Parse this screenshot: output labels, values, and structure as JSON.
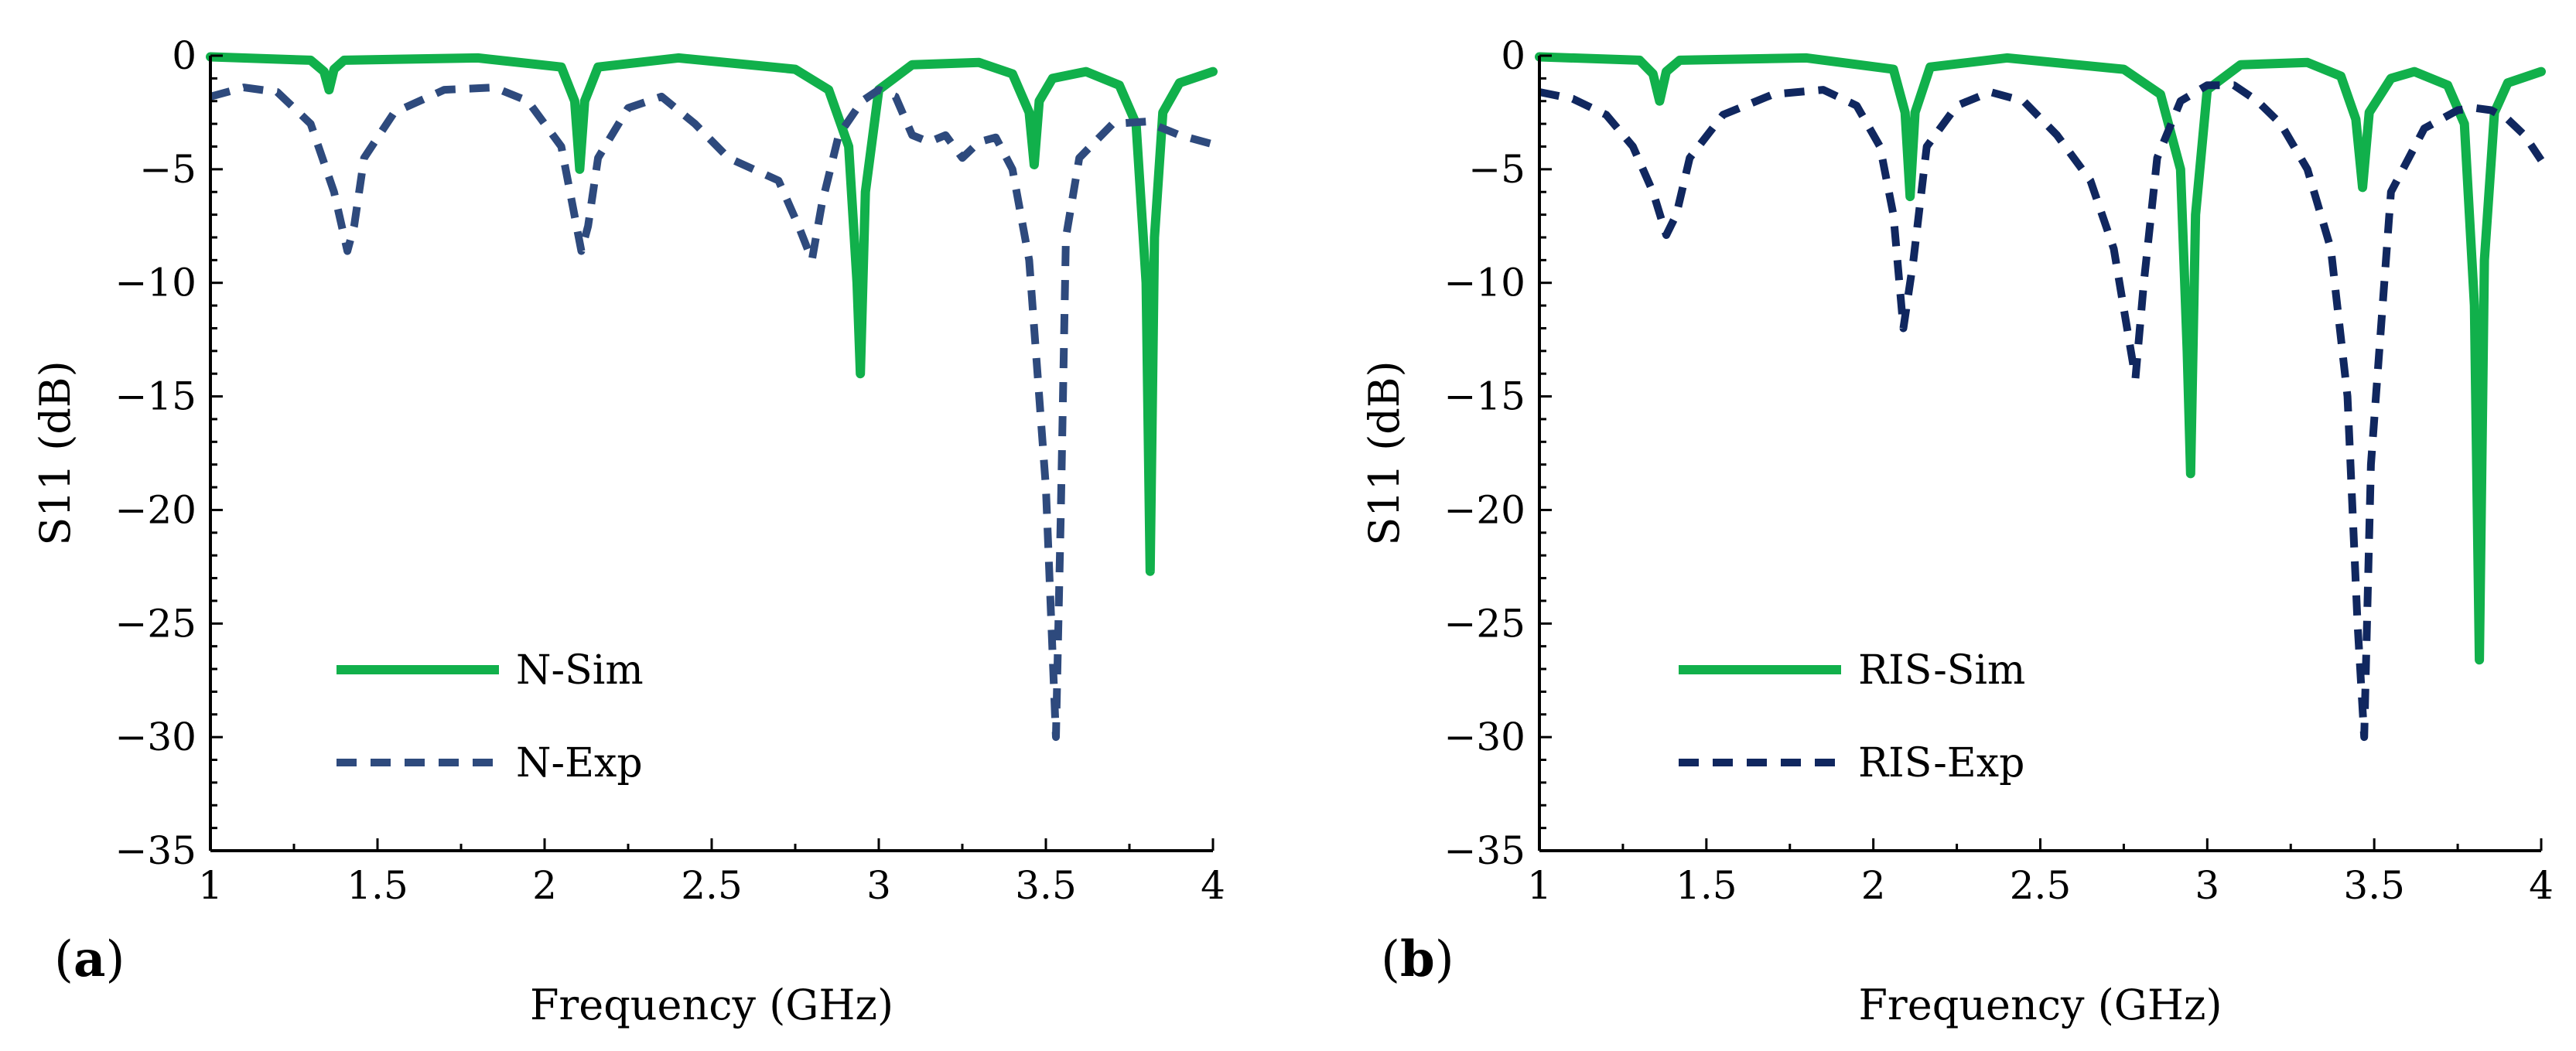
{
  "colors": {
    "sim": "#11b04b",
    "exp_a": "#2e4a7d",
    "exp_b": "#10275f"
  },
  "chart_data": [
    {
      "type": "line",
      "panel_label": "a",
      "title": "",
      "xlabel": "Frequency (GHz)",
      "ylabel": "S11 (dB)",
      "xlim": [
        1,
        4
      ],
      "ylim": [
        -35,
        0
      ],
      "xticks": [
        "1",
        "1.5",
        "2",
        "2.5",
        "3",
        "3.5",
        "4"
      ],
      "yticks": [
        "0",
        "−5",
        "−10",
        "−15",
        "−20",
        "−25",
        "−30",
        "−35"
      ],
      "legend_position": "bottom-left",
      "series": [
        {
          "name": "N-Sim",
          "style": "solid",
          "color": "#11b04b",
          "x": [
            1.0,
            1.3,
            1.34,
            1.355,
            1.37,
            1.4,
            1.8,
            2.05,
            2.09,
            2.105,
            2.12,
            2.16,
            2.4,
            2.75,
            2.85,
            2.91,
            2.935,
            2.945,
            2.96,
            3.0,
            3.1,
            3.3,
            3.4,
            3.45,
            3.465,
            3.48,
            3.52,
            3.62,
            3.72,
            3.77,
            3.8,
            3.812,
            3.825,
            3.85,
            3.9,
            4.0
          ],
          "y": [
            -0.05,
            -0.2,
            -0.7,
            -1.5,
            -0.6,
            -0.2,
            -0.1,
            -0.5,
            -2.0,
            -5.0,
            -2.0,
            -0.5,
            -0.1,
            -0.6,
            -1.5,
            -4.0,
            -10.0,
            -14.0,
            -6.0,
            -1.5,
            -0.4,
            -0.3,
            -0.8,
            -2.5,
            -4.8,
            -2.0,
            -1.0,
            -0.7,
            -1.3,
            -3.0,
            -10.0,
            -22.7,
            -8.0,
            -2.5,
            -1.2,
            -0.7
          ]
        },
        {
          "name": "N-Exp",
          "style": "dashed",
          "color": "#2e4a7d",
          "x": [
            1.0,
            1.1,
            1.2,
            1.3,
            1.37,
            1.41,
            1.43,
            1.46,
            1.55,
            1.7,
            1.85,
            1.95,
            2.05,
            2.11,
            2.13,
            2.16,
            2.25,
            2.35,
            2.45,
            2.55,
            2.7,
            2.76,
            2.8,
            2.83,
            2.88,
            2.95,
            3.0,
            3.05,
            3.1,
            3.15,
            3.2,
            3.25,
            3.3,
            3.35,
            3.4,
            3.45,
            3.5,
            3.53,
            3.545,
            3.56,
            3.6,
            3.7,
            3.8,
            3.9,
            4.0
          ],
          "y": [
            -1.8,
            -1.4,
            -1.6,
            -3.0,
            -6.0,
            -8.6,
            -7.5,
            -4.5,
            -2.5,
            -1.5,
            -1.4,
            -2.0,
            -4.0,
            -8.6,
            -7.5,
            -4.5,
            -2.3,
            -1.8,
            -3.0,
            -4.5,
            -5.5,
            -7.5,
            -9.0,
            -6.5,
            -3.5,
            -2.0,
            -1.5,
            -1.8,
            -3.5,
            -3.8,
            -3.5,
            -4.5,
            -3.8,
            -3.6,
            -5.0,
            -9.0,
            -19.0,
            -30.0,
            -20.0,
            -8.0,
            -4.5,
            -3.0,
            -2.9,
            -3.5,
            -3.9
          ]
        }
      ],
      "legend_entries": [
        "N-Sim",
        "N-Exp"
      ]
    },
    {
      "type": "line",
      "panel_label": "b",
      "title": "",
      "xlabel": "Frequency (GHz)",
      "ylabel": "S11 (dB)",
      "xlim": [
        1,
        4
      ],
      "ylim": [
        -35,
        0
      ],
      "xticks": [
        "1",
        "1.5",
        "2",
        "2.5",
        "3",
        "3.5",
        "4"
      ],
      "yticks": [
        "0",
        "−5",
        "−10",
        "−15",
        "−20",
        "−25",
        "−30",
        "−35"
      ],
      "legend_position": "bottom-left",
      "series": [
        {
          "name": "RIS-Sim",
          "style": "solid",
          "color": "#11b04b",
          "x": [
            1.0,
            1.3,
            1.34,
            1.36,
            1.38,
            1.42,
            1.8,
            2.06,
            2.095,
            2.11,
            2.125,
            2.17,
            2.4,
            2.75,
            2.86,
            2.92,
            2.94,
            2.95,
            2.965,
            3.0,
            3.1,
            3.3,
            3.4,
            3.445,
            3.465,
            3.485,
            3.55,
            3.62,
            3.72,
            3.77,
            3.8,
            3.815,
            3.83,
            3.86,
            3.9,
            4.0
          ],
          "y": [
            -0.05,
            -0.2,
            -0.8,
            -2.0,
            -0.7,
            -0.2,
            -0.1,
            -0.6,
            -2.5,
            -6.2,
            -2.5,
            -0.5,
            -0.1,
            -0.6,
            -1.7,
            -5.0,
            -13.0,
            -18.4,
            -7.0,
            -1.5,
            -0.4,
            -0.3,
            -0.9,
            -2.8,
            -5.8,
            -2.5,
            -1.0,
            -0.7,
            -1.3,
            -3.0,
            -11.0,
            -26.6,
            -9.0,
            -2.5,
            -1.2,
            -0.7
          ]
        },
        {
          "name": "RIS-Exp",
          "style": "dashed",
          "color": "#10275f",
          "x": [
            1.0,
            1.1,
            1.2,
            1.28,
            1.34,
            1.38,
            1.41,
            1.45,
            1.55,
            1.7,
            1.85,
            1.95,
            2.02,
            2.06,
            2.09,
            2.12,
            2.16,
            2.25,
            2.35,
            2.45,
            2.55,
            2.65,
            2.72,
            2.76,
            2.785,
            2.81,
            2.85,
            2.92,
            3.0,
            3.08,
            3.15,
            3.22,
            3.3,
            3.37,
            3.42,
            3.45,
            3.47,
            3.49,
            3.55,
            3.65,
            3.75,
            3.8,
            3.85,
            3.9,
            3.95,
            4.0
          ],
          "y": [
            -1.6,
            -1.9,
            -2.6,
            -4.0,
            -6.0,
            -7.9,
            -7.0,
            -4.5,
            -2.6,
            -1.7,
            -1.5,
            -2.2,
            -4.0,
            -7.0,
            -12.0,
            -9.0,
            -4.0,
            -2.2,
            -1.6,
            -2.0,
            -3.5,
            -5.5,
            -8.5,
            -12.0,
            -14.2,
            -10.0,
            -4.5,
            -2.0,
            -1.3,
            -1.3,
            -2.0,
            -3.0,
            -5.0,
            -8.5,
            -15.0,
            -25.0,
            -30.0,
            -18.0,
            -6.0,
            -3.2,
            -2.4,
            -2.3,
            -2.4,
            -2.8,
            -3.5,
            -4.6
          ]
        }
      ],
      "legend_entries": [
        "RIS-Sim",
        "RIS-Exp"
      ]
    }
  ]
}
